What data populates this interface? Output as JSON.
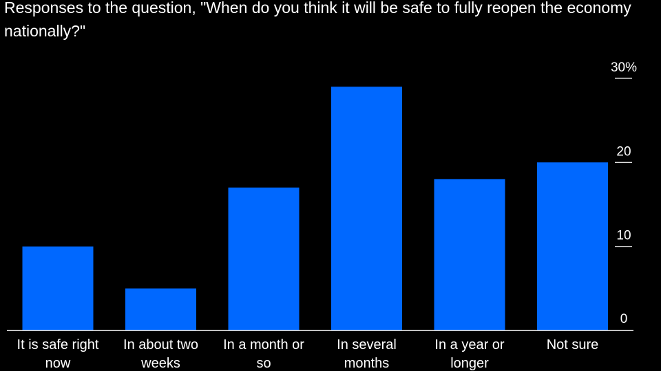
{
  "chart_data": {
    "type": "bar",
    "title": "Responses to the question, \"When do you think it will be safe to fully reopen the economy nationally?\"",
    "xlabel": "",
    "ylabel": "",
    "categories": [
      [
        "It is safe right",
        "now"
      ],
      [
        "In about two",
        "weeks"
      ],
      [
        "In a month or",
        "so"
      ],
      [
        "In several",
        "months"
      ],
      [
        "In a year or",
        "longer"
      ],
      [
        "Not sure"
      ]
    ],
    "values": [
      10,
      5,
      17,
      29,
      18,
      20
    ],
    "ylim": [
      0,
      30
    ],
    "yticks": [
      {
        "value": 0,
        "label": "0"
      },
      {
        "value": 10,
        "label": "10"
      },
      {
        "value": 20,
        "label": "20"
      },
      {
        "value": 30,
        "label": "30%"
      }
    ],
    "bar_color": "#0068ff",
    "axis_color": "#ffffff",
    "background": "#000000"
  }
}
